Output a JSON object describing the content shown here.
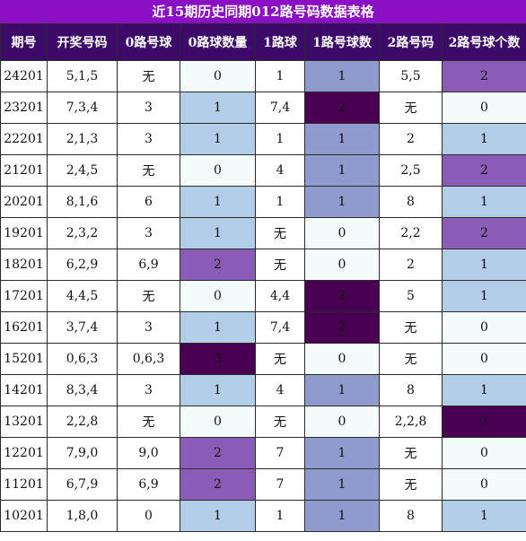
{
  "title": "近15期历史同期012路号码数据表格",
  "headers": [
    "期号",
    "开奖号码",
    "0路号球",
    "0路球数量",
    "1路球",
    "1路号球数",
    "2路号码",
    "2路号球个数"
  ],
  "rows": [
    [
      "24201",
      "5,1,5",
      "无",
      "0",
      "1",
      "1",
      "5,5",
      "2"
    ],
    [
      "23201",
      "7,3,4",
      "3",
      "1",
      "7,4",
      "2",
      "无",
      "0"
    ],
    [
      "22201",
      "2,1,3",
      "3",
      "1",
      "1",
      "1",
      "2",
      "1"
    ],
    [
      "21201",
      "2,4,5",
      "无",
      "0",
      "4",
      "1",
      "2,5",
      "2"
    ],
    [
      "20201",
      "8,1,6",
      "6",
      "1",
      "1",
      "1",
      "8",
      "1"
    ],
    [
      "19201",
      "2,3,2",
      "3",
      "1",
      "无",
      "0",
      "2,2",
      "2"
    ],
    [
      "18201",
      "6,2,9",
      "6,9",
      "2",
      "无",
      "0",
      "2",
      "1"
    ],
    [
      "17201",
      "4,4,5",
      "无",
      "0",
      "4,4",
      "2",
      "5",
      "1"
    ],
    [
      "16201",
      "3,7,4",
      "3",
      "1",
      "7,4",
      "2",
      "无",
      "0"
    ],
    [
      "15201",
      "0,6,3",
      "0,6,3",
      "3",
      "无",
      "0",
      "无",
      "0"
    ],
    [
      "14201",
      "8,3,4",
      "3",
      "1",
      "4",
      "1",
      "8",
      "1"
    ],
    [
      "13201",
      "2,2,8",
      "无",
      "0",
      "无",
      "0",
      "2,2,8",
      "3"
    ],
    [
      "12201",
      "7,9,0",
      "9,0",
      "2",
      "7",
      "1",
      "无",
      "0"
    ],
    [
      "11201",
      "6,7,9",
      "6,9",
      "2",
      "7",
      "1",
      "无",
      "0"
    ],
    [
      "10201",
      "1,8,0",
      "0",
      "1",
      "1",
      "1",
      "8",
      "1"
    ]
  ]
}
